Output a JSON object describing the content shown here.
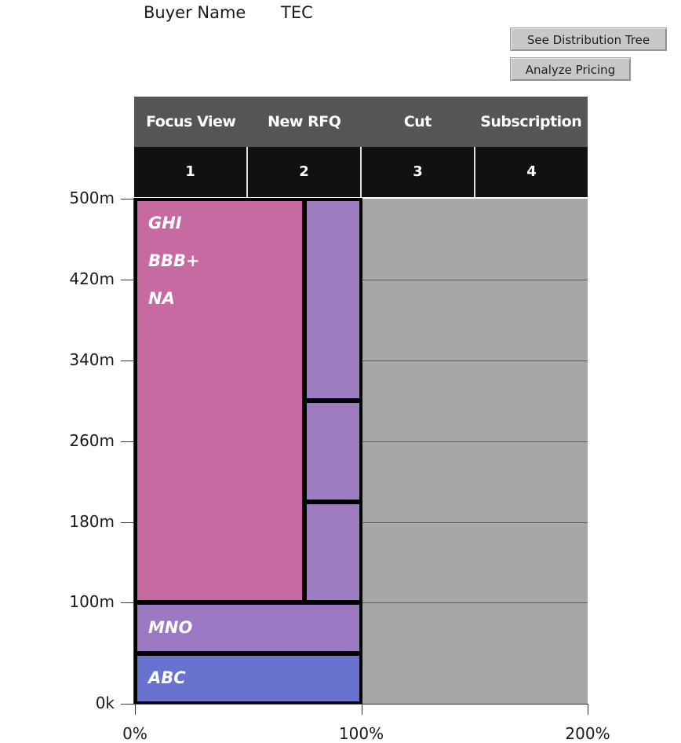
{
  "buyer": {
    "label": "Buyer Name",
    "value": "TEC"
  },
  "buttons": {
    "distribution": "See Distribution Tree",
    "pricing": "Analyze Pricing"
  },
  "columns": [
    {
      "name": "Focus View",
      "num": "1"
    },
    {
      "name": "New RFQ",
      "num": "2"
    },
    {
      "name": "Cut",
      "num": "3"
    },
    {
      "name": "Subscription",
      "num": "4"
    }
  ],
  "chart_data": {
    "type": "bar",
    "y_ticks": [
      "500m",
      "420m",
      "340m",
      "260m",
      "180m",
      "100m",
      "0k"
    ],
    "y_tick_values": [
      500,
      420,
      340,
      260,
      180,
      100,
      0
    ],
    "x_ticks": [
      "0%",
      "100%",
      "200%"
    ],
    "x_tick_values": [
      0,
      100,
      200
    ],
    "xlim": [
      0,
      200
    ],
    "ylim": [
      0,
      500
    ],
    "segments": [
      {
        "x0": 0,
        "x1": 75,
        "y0": 100,
        "y1": 500,
        "color": "#c86aa2",
        "labels": [
          "GHI",
          "BBB+",
          "NA"
        ]
      },
      {
        "x0": 75,
        "x1": 100,
        "y0": 300,
        "y1": 500,
        "color": "#9d7cc0",
        "labels": []
      },
      {
        "x0": 75,
        "x1": 100,
        "y0": 200,
        "y1": 300,
        "color": "#9d7cc0",
        "labels": []
      },
      {
        "x0": 75,
        "x1": 100,
        "y0": 100,
        "y1": 200,
        "color": "#9d7cc0",
        "labels": []
      },
      {
        "x0": 0,
        "x1": 100,
        "y0": 50,
        "y1": 100,
        "color": "#9b78c2",
        "labels": [
          "MNO"
        ]
      },
      {
        "x0": 0,
        "x1": 100,
        "y0": 0,
        "y1": 50,
        "color": "#6873cf",
        "labels": [
          "ABC"
        ]
      }
    ]
  }
}
